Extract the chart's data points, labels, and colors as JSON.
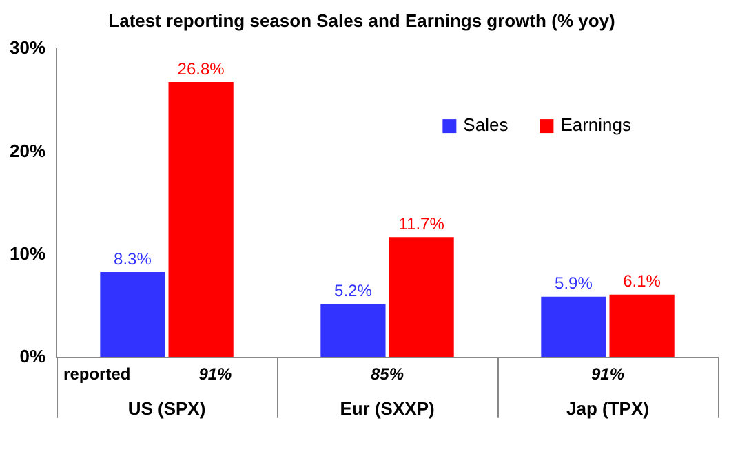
{
  "chart_data": {
    "type": "bar",
    "title": "Latest reporting season Sales and Earnings growth (% yoy)",
    "categories": [
      "US (SPX)",
      "Eur (SXXP)",
      "Jap (TPX)"
    ],
    "series": [
      {
        "name": "Sales",
        "color": "#3333ff",
        "values": [
          8.3,
          5.2,
          5.9
        ],
        "value_labels": [
          "8.3%",
          "5.2%",
          "5.9%"
        ]
      },
      {
        "name": "Earnings",
        "color": "#ff0000",
        "values": [
          26.8,
          11.7,
          6.1
        ],
        "value_labels": [
          "26.8%",
          "11.7%",
          "6.1%"
        ]
      }
    ],
    "ylim": [
      0,
      30
    ],
    "yticks": [
      {
        "value": 0,
        "label": "0%"
      },
      {
        "value": 10,
        "label": "10%"
      },
      {
        "value": 20,
        "label": "20%"
      },
      {
        "value": 30,
        "label": "30%"
      }
    ],
    "grid": false,
    "legend": "top right",
    "annotations": [
      "reported",
      "91%",
      "85%",
      "91%"
    ]
  }
}
